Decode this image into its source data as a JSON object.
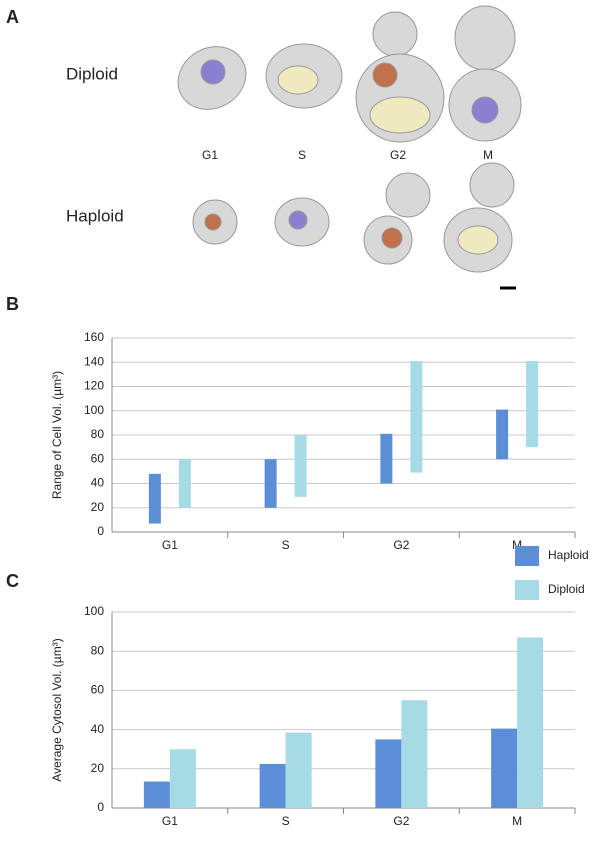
{
  "panel_a": {
    "label": "A",
    "rows": [
      "Diploid",
      "Haploid"
    ],
    "columns": [
      "G1",
      "S",
      "G2",
      "M"
    ]
  },
  "chart_data": [
    {
      "type": "range",
      "label": "B",
      "y_label": "Range of Cell Vol. (µm³)",
      "categories": [
        "G1",
        "S",
        "G2",
        "M"
      ],
      "series": [
        {
          "name": "Haploid",
          "color": "#5b8ed6",
          "values": [
            [
              7,
              48
            ],
            [
              20,
              60
            ],
            [
              40,
              81
            ],
            [
              60,
              101
            ]
          ]
        },
        {
          "name": "Diploid",
          "color": "#a6dbe6",
          "values": [
            [
              20,
              60
            ],
            [
              29,
              80
            ],
            [
              49,
              141
            ],
            [
              70,
              141
            ]
          ]
        }
      ],
      "ylim": [
        0,
        160
      ],
      "yticks": [
        0,
        20,
        40,
        60,
        80,
        100,
        120,
        140,
        160
      ],
      "grid": true
    },
    {
      "type": "bar",
      "label": "C",
      "y_label": "Average Cytosol Vol. (µm³)",
      "categories": [
        "G1",
        "S",
        "G2",
        "M"
      ],
      "series": [
        {
          "name": "Haploid",
          "color": "#5b8ed6",
          "values": [
            13.5,
            22.5,
            35,
            40.5
          ]
        },
        {
          "name": "Diploid",
          "color": "#a6dbe6",
          "values": [
            30,
            38.5,
            55,
            87
          ]
        }
      ],
      "ylim": [
        0,
        100
      ],
      "yticks": [
        0,
        20,
        40,
        60,
        80,
        100
      ],
      "grid": true
    }
  ]
}
